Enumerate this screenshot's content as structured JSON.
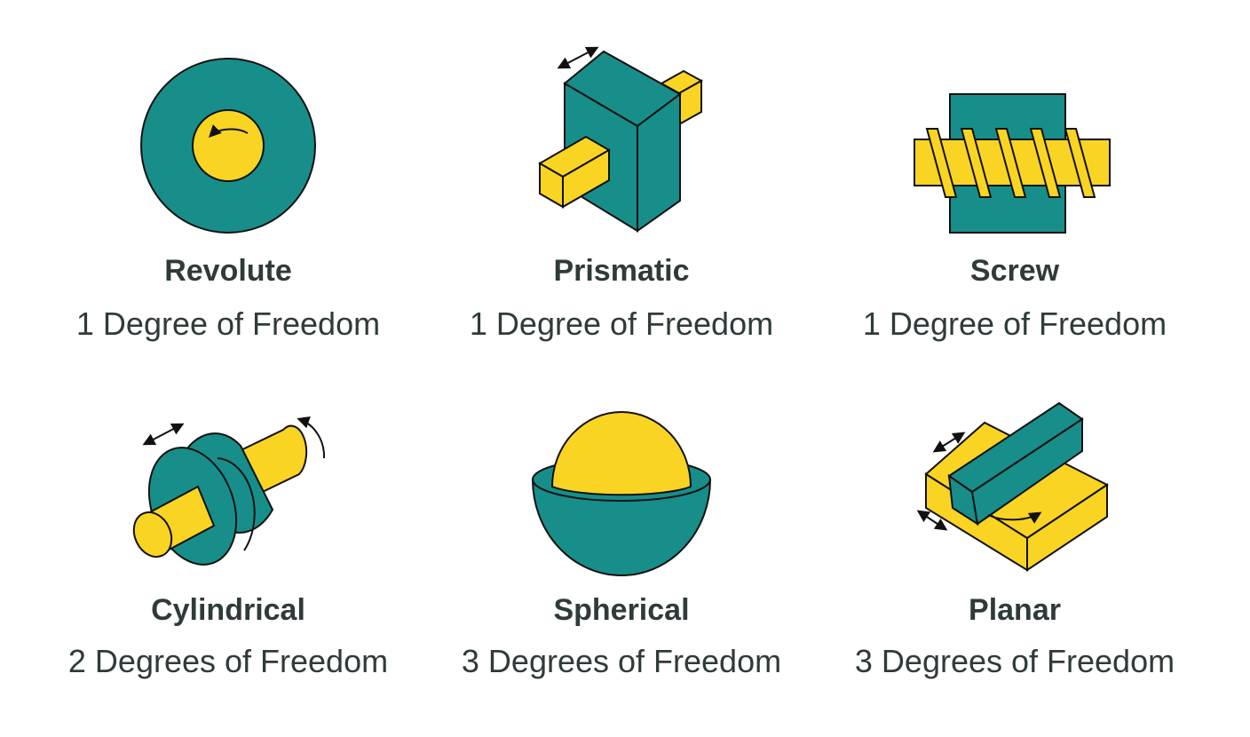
{
  "colors": {
    "teal": "#178e8a",
    "yellow": "#f9d423",
    "outline": "#111111",
    "text": "#2f3b3a"
  },
  "joints": [
    {
      "name": "Revolute",
      "dof": "1 Degree of Freedom",
      "icon": "revolute-joint-icon"
    },
    {
      "name": "Prismatic",
      "dof": "1 Degree of Freedom",
      "icon": "prismatic-joint-icon"
    },
    {
      "name": "Screw",
      "dof": "1 Degree of Freedom",
      "icon": "screw-joint-icon"
    },
    {
      "name": "Cylindrical",
      "dof": "2 Degrees of Freedom",
      "icon": "cylindrical-joint-icon"
    },
    {
      "name": "Spherical",
      "dof": "3 Degrees of Freedom",
      "icon": "spherical-joint-icon"
    },
    {
      "name": "Planar",
      "dof": "3 Degrees of Freedom",
      "icon": "planar-joint-icon"
    }
  ]
}
